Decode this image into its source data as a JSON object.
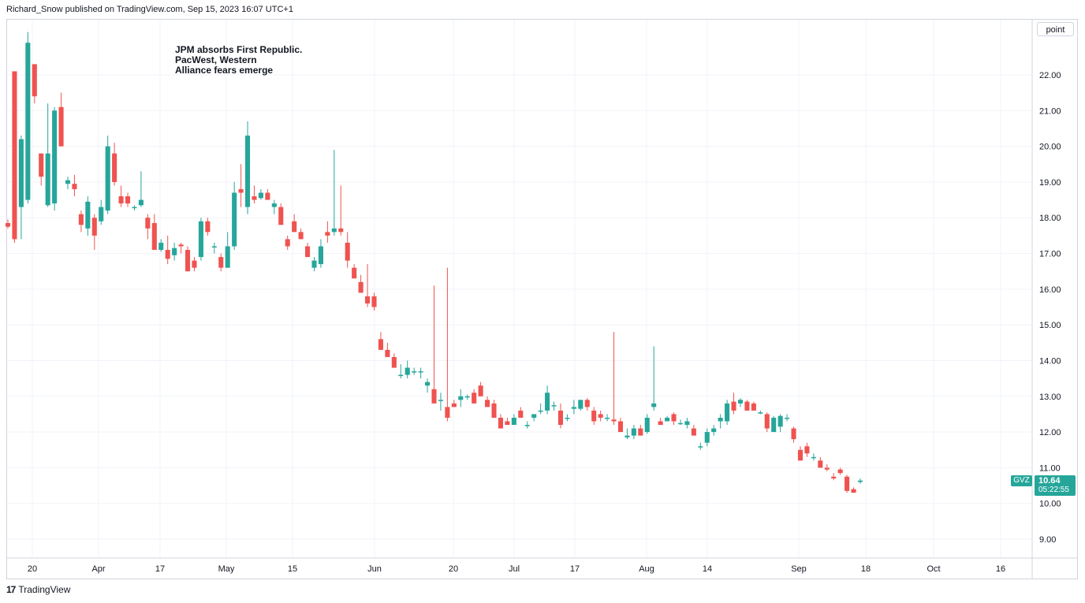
{
  "header": {
    "published": "Richard_Snow published on TradingView.com, Sep 15, 2023 16:07 UTC+1"
  },
  "footer": {
    "logo_mark": "17",
    "brand": "TradingView"
  },
  "price_axis": {
    "unit_label": "point"
  },
  "annotation": {
    "text": "JPM absorbs First Republic.\nPacWest, Western\nAlliance fears emerge"
  },
  "last_price": {
    "symbol": "GVZ",
    "value": "10.64",
    "countdown": "05:22:55"
  },
  "colors": {
    "up": "#26a69a",
    "down": "#ef5350",
    "grid": "#f0f3fa",
    "border": "#d1d4dc"
  },
  "chart_data": {
    "type": "candlestick",
    "symbol": "GVZ",
    "ylim": [
      8.5,
      23.2
    ],
    "y_ticks": [
      "9.00",
      "10.00",
      "11.00",
      "12.00",
      "13.00",
      "14.00",
      "15.00",
      "16.00",
      "17.00",
      "18.00",
      "19.00",
      "20.00",
      "21.00",
      "22.00"
    ],
    "x_ticks": [
      "20",
      "Apr",
      "17",
      "May",
      "15",
      "Jun",
      "20",
      "Jul",
      "17",
      "Aug",
      "14",
      "Sep",
      "18",
      "Oct",
      "16"
    ],
    "grid": true,
    "candles": [
      [
        17.85,
        17.95,
        17.7,
        17.75
      ],
      [
        22.1,
        22.1,
        17.3,
        17.4
      ],
      [
        18.3,
        20.3,
        17.4,
        20.2
      ],
      [
        18.5,
        23.5,
        18.4,
        22.9
      ],
      [
        22.3,
        22.3,
        21.2,
        21.4
      ],
      [
        19.8,
        19.8,
        18.9,
        19.15
      ],
      [
        18.35,
        21.2,
        18.3,
        19.8
      ],
      [
        18.4,
        21.1,
        18.2,
        21.0
      ],
      [
        21.1,
        21.5,
        20.0,
        20.0
      ],
      [
        18.95,
        19.15,
        18.8,
        19.05
      ],
      [
        18.95,
        19.2,
        18.6,
        18.8
      ],
      [
        18.1,
        18.2,
        17.6,
        17.8
      ],
      [
        17.7,
        18.6,
        17.5,
        18.45
      ],
      [
        18.0,
        18.1,
        17.1,
        17.5
      ],
      [
        17.9,
        18.5,
        17.8,
        18.3
      ],
      [
        18.2,
        20.3,
        18.1,
        20.0
      ],
      [
        19.8,
        20.1,
        18.9,
        19.0
      ],
      [
        18.6,
        18.9,
        18.3,
        18.4
      ],
      [
        18.6,
        18.7,
        18.3,
        18.4
      ],
      [
        18.3,
        18.35,
        18.2,
        18.3
      ],
      [
        18.35,
        19.3,
        18.3,
        18.5
      ],
      [
        18.0,
        18.1,
        17.4,
        17.7
      ],
      [
        17.85,
        18.1,
        17.1,
        17.1
      ],
      [
        17.1,
        17.4,
        17.05,
        17.3
      ],
      [
        17.1,
        17.5,
        16.7,
        16.85
      ],
      [
        16.95,
        17.3,
        16.8,
        17.15
      ],
      [
        17.25,
        17.3,
        17.0,
        17.2
      ],
      [
        17.1,
        17.2,
        16.5,
        16.5
      ],
      [
        16.8,
        16.9,
        16.5,
        16.6
      ],
      [
        16.9,
        18.0,
        16.8,
        17.9
      ],
      [
        17.9,
        18.0,
        17.5,
        17.6
      ],
      [
        17.2,
        17.3,
        17.0,
        17.2
      ],
      [
        16.9,
        17.0,
        16.5,
        16.6
      ],
      [
        16.6,
        17.6,
        16.6,
        17.2
      ],
      [
        17.2,
        19.0,
        17.1,
        18.7
      ],
      [
        18.8,
        19.5,
        18.3,
        18.7
      ],
      [
        18.3,
        20.7,
        18.1,
        20.3
      ],
      [
        18.6,
        18.9,
        18.4,
        18.5
      ],
      [
        18.55,
        18.8,
        18.5,
        18.7
      ],
      [
        18.7,
        18.8,
        18.5,
        18.5
      ],
      [
        18.3,
        18.5,
        18.1,
        18.4
      ],
      [
        18.3,
        18.4,
        17.8,
        17.8
      ],
      [
        17.4,
        17.5,
        17.1,
        17.2
      ],
      [
        17.9,
        18.1,
        17.6,
        17.6
      ],
      [
        17.6,
        17.7,
        17.4,
        17.4
      ],
      [
        17.2,
        17.3,
        16.9,
        16.9
      ],
      [
        16.6,
        16.9,
        16.5,
        16.8
      ],
      [
        16.7,
        17.4,
        16.6,
        17.2
      ],
      [
        17.6,
        17.9,
        17.3,
        17.5
      ],
      [
        17.6,
        19.9,
        17.5,
        17.7
      ],
      [
        17.7,
        18.9,
        17.5,
        17.6
      ],
      [
        17.3,
        17.6,
        16.6,
        16.8
      ],
      [
        16.6,
        16.7,
        16.3,
        16.3
      ],
      [
        16.2,
        16.4,
        15.9,
        15.9
      ],
      [
        15.8,
        16.7,
        15.5,
        15.6
      ],
      [
        15.8,
        15.9,
        15.4,
        15.5
      ],
      [
        14.6,
        14.8,
        14.3,
        14.3
      ],
      [
        14.3,
        14.5,
        14.1,
        14.1
      ],
      [
        14.1,
        14.2,
        13.8,
        13.8
      ],
      [
        13.6,
        13.9,
        13.5,
        13.6
      ],
      [
        13.6,
        14.0,
        13.5,
        13.8
      ],
      [
        13.7,
        13.8,
        13.6,
        13.7
      ],
      [
        13.7,
        13.8,
        13.5,
        13.7
      ],
      [
        13.3,
        13.5,
        13.1,
        13.4
      ],
      [
        13.2,
        16.1,
        12.8,
        12.8
      ],
      [
        12.9,
        13.1,
        12.6,
        12.9
      ],
      [
        12.7,
        16.6,
        12.3,
        12.4
      ],
      [
        12.8,
        12.9,
        12.7,
        12.7
      ],
      [
        12.9,
        13.2,
        12.7,
        13.0
      ],
      [
        13.0,
        13.05,
        12.9,
        13.0
      ],
      [
        13.1,
        13.2,
        12.8,
        12.8
      ],
      [
        13.3,
        13.4,
        13.0,
        13.0
      ],
      [
        12.9,
        13.0,
        12.7,
        12.7
      ],
      [
        12.8,
        12.9,
        12.4,
        12.4
      ],
      [
        12.4,
        12.5,
        12.1,
        12.1
      ],
      [
        12.3,
        12.4,
        12.2,
        12.2
      ],
      [
        12.2,
        12.5,
        12.2,
        12.4
      ],
      [
        12.6,
        12.7,
        12.4,
        12.4
      ],
      [
        12.2,
        12.3,
        12.1,
        12.2
      ],
      [
        12.4,
        12.5,
        12.3,
        12.5
      ],
      [
        12.6,
        12.8,
        12.5,
        12.6
      ],
      [
        12.6,
        13.3,
        12.5,
        13.1
      ],
      [
        12.75,
        12.85,
        12.6,
        12.75
      ],
      [
        12.6,
        12.8,
        12.1,
        12.2
      ],
      [
        12.4,
        12.5,
        12.3,
        12.4
      ],
      [
        12.65,
        12.9,
        12.5,
        12.7
      ],
      [
        12.65,
        12.9,
        12.6,
        12.9
      ],
      [
        12.9,
        12.95,
        12.6,
        12.7
      ],
      [
        12.6,
        12.7,
        12.2,
        12.3
      ],
      [
        12.5,
        12.6,
        12.3,
        12.4
      ],
      [
        12.4,
        12.5,
        12.3,
        12.4
      ],
      [
        12.35,
        14.8,
        12.2,
        12.3
      ],
      [
        12.3,
        12.4,
        12.0,
        12.0
      ],
      [
        11.85,
        12.1,
        11.8,
        11.9
      ],
      [
        11.9,
        12.2,
        11.8,
        12.1
      ],
      [
        12.1,
        12.2,
        11.9,
        11.9
      ],
      [
        12.0,
        12.5,
        11.95,
        12.4
      ],
      [
        12.7,
        14.4,
        12.6,
        12.8
      ],
      [
        12.3,
        12.4,
        12.2,
        12.2
      ],
      [
        12.3,
        12.45,
        12.3,
        12.4
      ],
      [
        12.5,
        12.55,
        12.2,
        12.3
      ],
      [
        12.25,
        12.35,
        12.2,
        12.25
      ],
      [
        12.2,
        12.4,
        12.1,
        12.3
      ],
      [
        12.1,
        12.2,
        11.9,
        11.9
      ],
      [
        11.6,
        11.7,
        11.5,
        11.6
      ],
      [
        11.7,
        12.1,
        11.6,
        12.0
      ],
      [
        12.0,
        12.2,
        11.9,
        12.1
      ],
      [
        12.3,
        12.5,
        12.1,
        12.4
      ],
      [
        12.3,
        12.9,
        12.2,
        12.8
      ],
      [
        12.85,
        13.1,
        12.5,
        12.6
      ],
      [
        12.8,
        12.95,
        12.7,
        12.9
      ],
      [
        12.85,
        12.9,
        12.6,
        12.6
      ],
      [
        12.8,
        12.85,
        12.6,
        12.6
      ],
      [
        12.55,
        12.6,
        12.5,
        12.55
      ],
      [
        12.5,
        12.55,
        12.0,
        12.1
      ],
      [
        12.0,
        12.45,
        12.0,
        12.4
      ],
      [
        12.15,
        12.5,
        12.0,
        12.45
      ],
      [
        12.4,
        12.5,
        12.3,
        12.4
      ],
      [
        12.1,
        12.15,
        11.7,
        11.8
      ],
      [
        11.5,
        11.6,
        11.2,
        11.2
      ],
      [
        11.6,
        11.7,
        11.3,
        11.4
      ],
      [
        11.3,
        11.4,
        11.2,
        11.3
      ],
      [
        11.2,
        11.3,
        11.0,
        11.0
      ],
      [
        11.0,
        11.1,
        10.9,
        10.95
      ],
      [
        10.75,
        10.85,
        10.65,
        10.7
      ],
      [
        10.95,
        11.0,
        10.8,
        10.85
      ],
      [
        10.75,
        10.8,
        10.3,
        10.35
      ],
      [
        10.4,
        10.45,
        10.3,
        10.3
      ],
      [
        10.6,
        10.7,
        10.55,
        10.64
      ]
    ]
  }
}
